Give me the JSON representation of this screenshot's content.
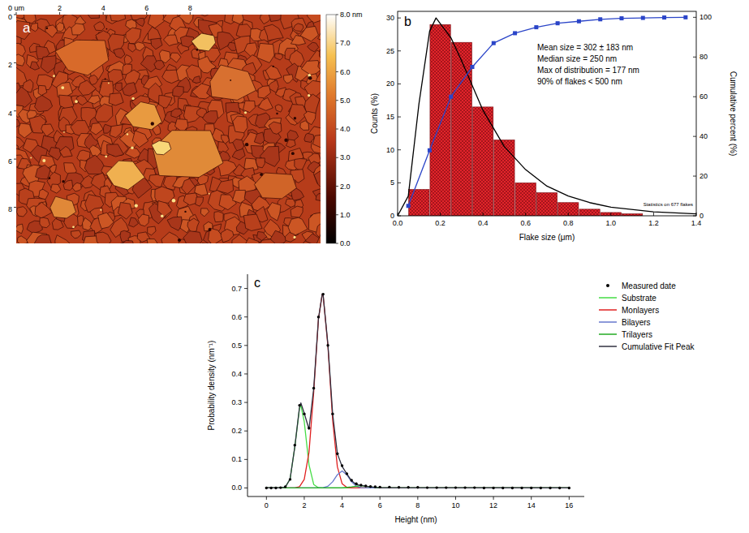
{
  "chart_data": [
    {
      "type": "image",
      "title": "a",
      "xlim": [
        0,
        14
      ],
      "ylim": [
        0,
        9.5
      ],
      "xticks": [
        {
          "value": 0,
          "label": "0 um"
        },
        2,
        4,
        6,
        8
      ],
      "yticks": [
        0,
        2,
        4,
        6,
        8
      ],
      "colorbar": {
        "range": [
          0,
          8
        ],
        "ticks": [
          {
            "value": 0,
            "label": "0.0"
          },
          {
            "value": 1,
            "label": "1.0"
          },
          {
            "value": 2,
            "label": "2.0"
          },
          {
            "value": 3,
            "label": "3.0"
          },
          {
            "value": 4,
            "label": "4.0"
          },
          {
            "value": 5,
            "label": "5.0"
          },
          {
            "value": 6,
            "label": "6.0"
          },
          {
            "value": 7,
            "label": "7.0"
          },
          {
            "value": 8,
            "label": "8.0 nm"
          }
        ]
      }
    },
    {
      "type": "histogram",
      "title": "b",
      "x_label": "Flake size (μm)",
      "y_label": "Counts (%)",
      "y2_label": "Cumulative percent (%)",
      "bins": [
        0.05,
        0.15,
        0.25,
        0.35,
        0.45,
        0.55,
        0.65,
        0.75,
        0.85,
        0.95,
        1.05,
        1.15
      ],
      "values": [
        4,
        29,
        26.3,
        16.5,
        11.5,
        5,
        3.5,
        2,
        1,
        0.5,
        0.3
      ],
      "color": "#e3242b",
      "series": [
        {
          "type": "line",
          "color": "#000000",
          "x": [
            0,
            0.05,
            0.1,
            0.15,
            0.18,
            0.25,
            0.3,
            0.4,
            0.5,
            0.6,
            0.7,
            0.8,
            0.9,
            1.0,
            1.2,
            1.4
          ],
          "values": [
            0,
            3,
            17,
            28,
            30,
            27,
            23.5,
            16,
            10.5,
            7,
            4.5,
            3,
            2,
            1.3,
            0.6,
            0.3
          ]
        },
        {
          "type": "line",
          "marker": "square",
          "color": "#2b45c8",
          "axis": "y2",
          "x": [
            0.05,
            0.15,
            0.25,
            0.35,
            0.45,
            0.55,
            0.65,
            0.75,
            0.85,
            0.95,
            1.05,
            1.15,
            1.25,
            1.35
          ],
          "values": [
            5,
            33,
            60,
            75,
            87,
            92,
            95,
            97,
            98,
            99,
            99.5,
            99.7,
            99.9,
            100
          ]
        }
      ],
      "annotations": [
        "Mean size = 302 ± 183 nm",
        "Median size = 250 nm",
        "Max of distribution = 177 nm",
        "90% of flakes < 500 nm",
        "Statistics on 677 flakes"
      ],
      "xlim": [
        0,
        1.4
      ],
      "xticks": [
        {
          "value": 0,
          "label": "0.0"
        },
        0.2,
        0.4,
        0.6,
        0.8,
        {
          "value": 1,
          "label": "1.0"
        },
        1.2,
        1.4
      ],
      "ylim": [
        0,
        31
      ],
      "yticks": [
        0,
        5,
        10,
        15,
        20,
        25,
        30
      ],
      "y2lim": [
        0,
        103
      ],
      "y2ticks": [
        0,
        20,
        40,
        60,
        80,
        100
      ]
    },
    {
      "type": "line",
      "title": "c",
      "x_label": "Height (nm)",
      "y_label": "Probability density (nm⁻¹)",
      "legend": "right",
      "xlim": [
        -1,
        16.8
      ],
      "ylim": [
        -0.03,
        0.75
      ],
      "xticks": [
        0,
        2,
        4,
        6,
        8,
        10,
        12,
        14,
        16
      ],
      "yticks": [
        {
          "value": 0,
          "label": "0.0"
        },
        0.1,
        0.2,
        0.3,
        0.4,
        0.5,
        0.6,
        0.7
      ],
      "series": [
        {
          "name": "Measured date",
          "type": "scatter",
          "marker": "dot",
          "color": "#000000",
          "x": [
            0,
            0.25,
            0.5,
            0.75,
            1.0,
            1.25,
            1.5,
            1.75,
            2.0,
            2.25,
            2.5,
            2.75,
            3.0,
            3.25,
            3.5,
            3.75,
            4.0,
            4.25,
            4.5,
            4.75,
            5.0,
            5.25,
            5.5,
            5.75,
            6.0,
            6.5,
            7,
            7.5,
            8,
            8.5,
            9,
            9.5,
            10,
            10.5,
            11,
            11.5,
            12,
            12.5,
            13,
            13.5,
            14,
            14.5,
            15,
            15.5,
            16
          ],
          "values": [
            0,
            0,
            0,
            0.001,
            0.004,
            0.03,
            0.15,
            0.29,
            0.26,
            0.21,
            0.35,
            0.6,
            0.68,
            0.5,
            0.26,
            0.12,
            0.078,
            0.05,
            0.027,
            0.015,
            0.01,
            0.007,
            0.005,
            0.004,
            0.003,
            0.003,
            0.002,
            0.002,
            0.002,
            0.001,
            0.001,
            0.001,
            0.001,
            0.001,
            0.001,
            0,
            0,
            0,
            0,
            0,
            0,
            0,
            0,
            0,
            0
          ]
        },
        {
          "name": "Substrate",
          "type": "line",
          "color": "#44dd44",
          "x": [
            0,
            0.75,
            1.0,
            1.25,
            1.5,
            1.75,
            1.82,
            2.0,
            2.25,
            2.5,
            2.75,
            3.0,
            16
          ],
          "values": [
            0,
            0,
            0.0029,
            0.0312,
            0.1437,
            0.28,
            0.29,
            0.232,
            0.0816,
            0.0122,
            0.0008,
            0,
            0
          ]
        },
        {
          "name": "Monlayers",
          "type": "line",
          "color": "#e02020",
          "x": [
            0,
            1.25,
            1.5,
            1.75,
            2.0,
            2.25,
            2.5,
            2.75,
            2.95,
            3.0,
            3.25,
            3.5,
            3.75,
            4.0,
            4.25,
            4.5,
            5.0,
            16
          ],
          "values": [
            0,
            0,
            0.0005,
            0.0046,
            0.0299,
            0.1247,
            0.337,
            0.592,
            0.68,
            0.674,
            0.498,
            0.2386,
            0.0741,
            0.015,
            0.002,
            0.0002,
            0,
            0
          ]
        },
        {
          "name": "Bilayers",
          "type": "line",
          "color": "#6677cc",
          "x": [
            0,
            2.5,
            3.0,
            3.25,
            3.5,
            3.75,
            4.0,
            4.25,
            4.5,
            4.75,
            5.0,
            5.5,
            16
          ],
          "values": [
            0,
            0,
            0.001,
            0.006,
            0.0216,
            0.0465,
            0.06,
            0.0465,
            0.0216,
            0.006,
            0.001,
            0,
            0
          ]
        },
        {
          "name": "Trilayers",
          "type": "line",
          "color": "#22aa22",
          "x": [
            0,
            3.5,
            4.0,
            4.5,
            5.0,
            5.5,
            6.0,
            6.5,
            16
          ],
          "values": [
            0,
            0,
            0.0004,
            0.0036,
            0.008,
            0.0036,
            0.0004,
            0,
            0
          ]
        },
        {
          "name": "Cumulative Fit Peak",
          "type": "line",
          "color": "#303040",
          "x": [
            0,
            0.75,
            1.0,
            1.25,
            1.5,
            1.75,
            1.82,
            2.0,
            2.25,
            2.5,
            2.75,
            2.95,
            3.0,
            3.25,
            3.5,
            3.75,
            4.0,
            4.25,
            4.5,
            4.75,
            5.0,
            5.5,
            6.0,
            16
          ],
          "values": [
            0,
            0,
            0.0029,
            0.0312,
            0.1442,
            0.2846,
            0.2982,
            0.2619,
            0.2063,
            0.3492,
            0.594,
            0.681,
            0.675,
            0.504,
            0.2602,
            0.1206,
            0.0754,
            0.0495,
            0.0254,
            0.012,
            0.009,
            0.0036,
            0.0004,
            0
          ]
        }
      ]
    }
  ]
}
